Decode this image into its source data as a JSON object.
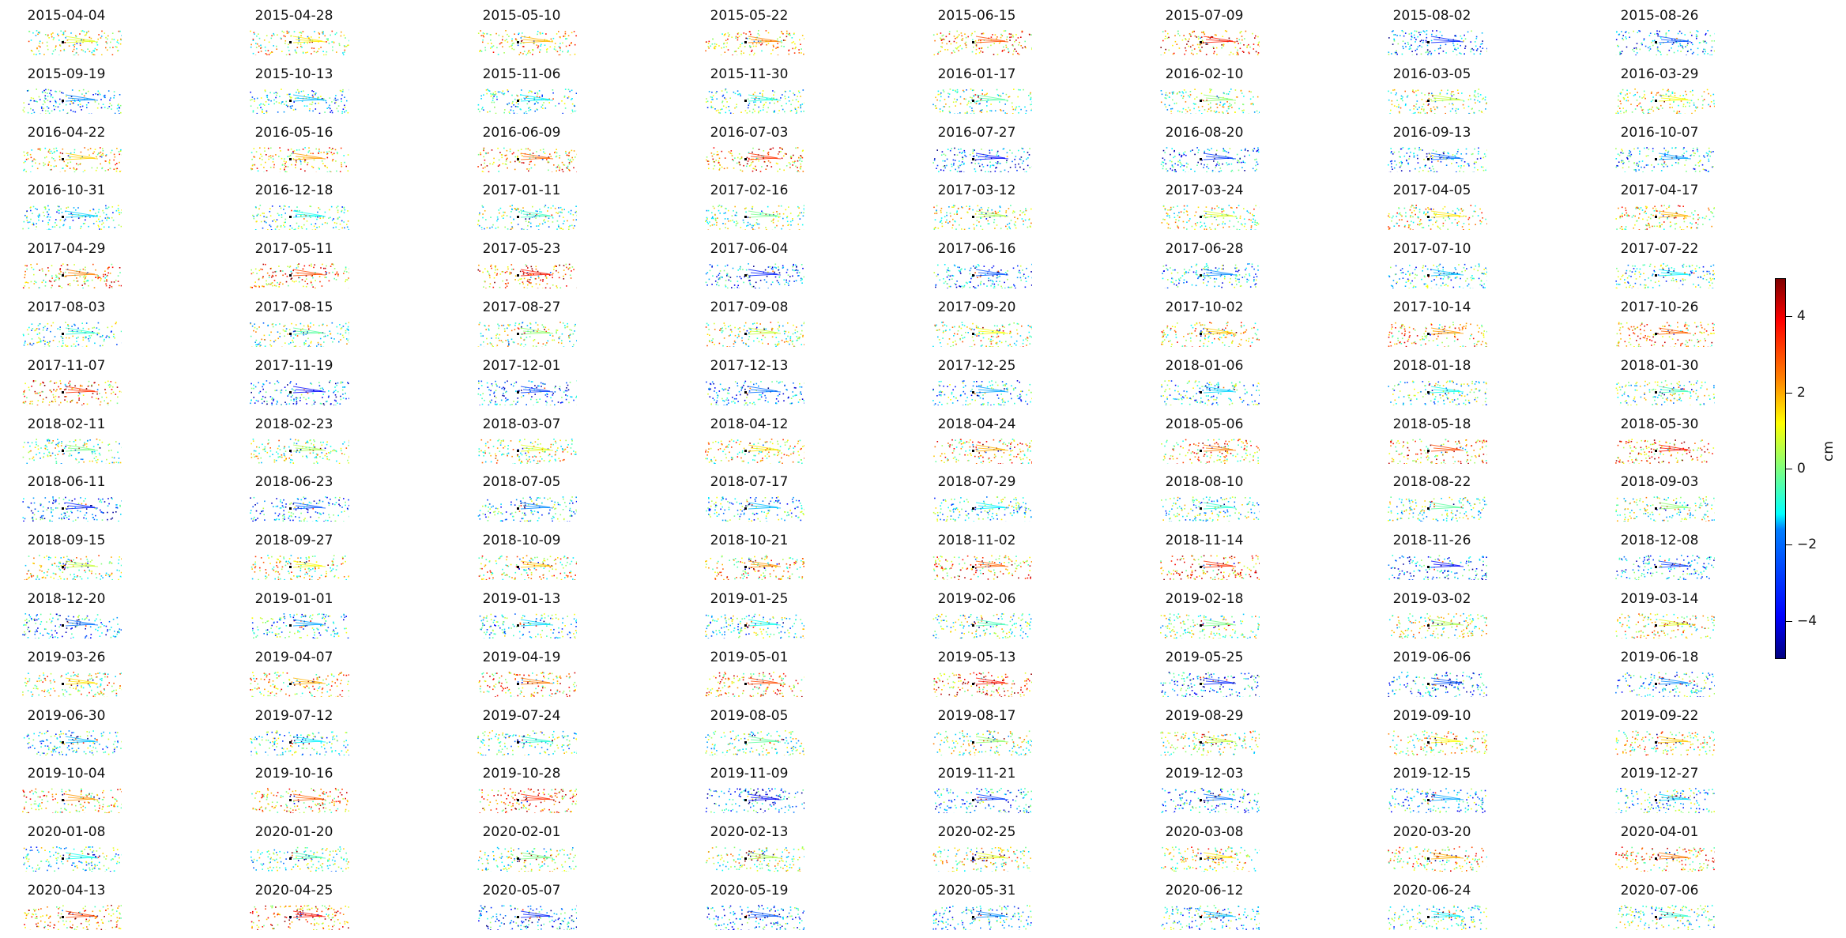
{
  "chart_data": {
    "type": "scatter",
    "colormap": "jet",
    "dates": [
      "2015-04-04",
      "2015-04-28",
      "2015-05-10",
      "2015-05-22",
      "2015-06-15",
      "2015-07-09",
      "2015-08-02",
      "2015-08-26",
      "2015-09-19",
      "2015-10-13",
      "2015-11-06",
      "2015-11-30",
      "2016-01-17",
      "2016-02-10",
      "2016-03-05",
      "2016-03-29",
      "2016-04-22",
      "2016-05-16",
      "2016-06-09",
      "2016-07-03",
      "2016-07-27",
      "2016-08-20",
      "2016-09-13",
      "2016-10-07",
      "2016-10-31",
      "2016-12-18",
      "2017-01-11",
      "2017-02-16",
      "2017-03-12",
      "2017-03-24",
      "2017-04-05",
      "2017-04-17",
      "2017-04-29",
      "2017-05-11",
      "2017-05-23",
      "2017-06-04",
      "2017-06-16",
      "2017-06-28",
      "2017-07-10",
      "2017-07-22",
      "2017-08-03",
      "2017-08-15",
      "2017-08-27",
      "2017-09-08",
      "2017-09-20",
      "2017-10-02",
      "2017-10-14",
      "2017-10-26",
      "2017-11-07",
      "2017-11-19",
      "2017-12-01",
      "2017-12-13",
      "2017-12-25",
      "2018-01-06",
      "2018-01-18",
      "2018-01-30",
      "2018-02-11",
      "2018-02-23",
      "2018-03-07",
      "2018-04-12",
      "2018-04-24",
      "2018-05-06",
      "2018-05-18",
      "2018-05-30",
      "2018-06-11",
      "2018-06-23",
      "2018-07-05",
      "2018-07-17",
      "2018-07-29",
      "2018-08-10",
      "2018-08-22",
      "2018-09-03",
      "2018-09-15",
      "2018-09-27",
      "2018-10-09",
      "2018-10-21",
      "2018-11-02",
      "2018-11-14",
      "2018-11-26",
      "2018-12-08",
      "2018-12-20",
      "2019-01-01",
      "2019-01-13",
      "2019-01-25",
      "2019-02-06",
      "2019-02-18",
      "2019-03-02",
      "2019-03-14",
      "2019-03-26",
      "2019-04-07",
      "2019-04-19",
      "2019-05-01",
      "2019-05-13",
      "2019-05-25",
      "2019-06-06",
      "2019-06-18",
      "2019-06-30",
      "2019-07-12",
      "2019-07-24",
      "2019-08-05",
      "2019-08-17",
      "2019-08-29",
      "2019-09-10",
      "2019-09-22",
      "2019-10-04",
      "2019-10-16",
      "2019-10-28",
      "2019-11-09",
      "2019-11-21",
      "2019-12-03",
      "2019-12-15",
      "2019-12-27",
      "2020-01-08",
      "2020-01-20",
      "2020-02-01",
      "2020-02-13",
      "2020-02-25",
      "2020-03-08",
      "2020-03-20",
      "2020-04-01",
      "2020-04-13",
      "2020-04-25",
      "2020-05-07",
      "2020-05-19",
      "2020-05-31",
      "2020-06-12",
      "2020-06-24",
      "2020-07-06"
    ],
    "colorbar": {
      "label": "cm",
      "vmin": -5,
      "vmax": 5,
      "ticks": [
        -4,
        -2,
        0,
        2,
        4
      ],
      "tick_labels": [
        "−4",
        "−2",
        "0",
        "2",
        "4"
      ]
    },
    "grid": false
  }
}
